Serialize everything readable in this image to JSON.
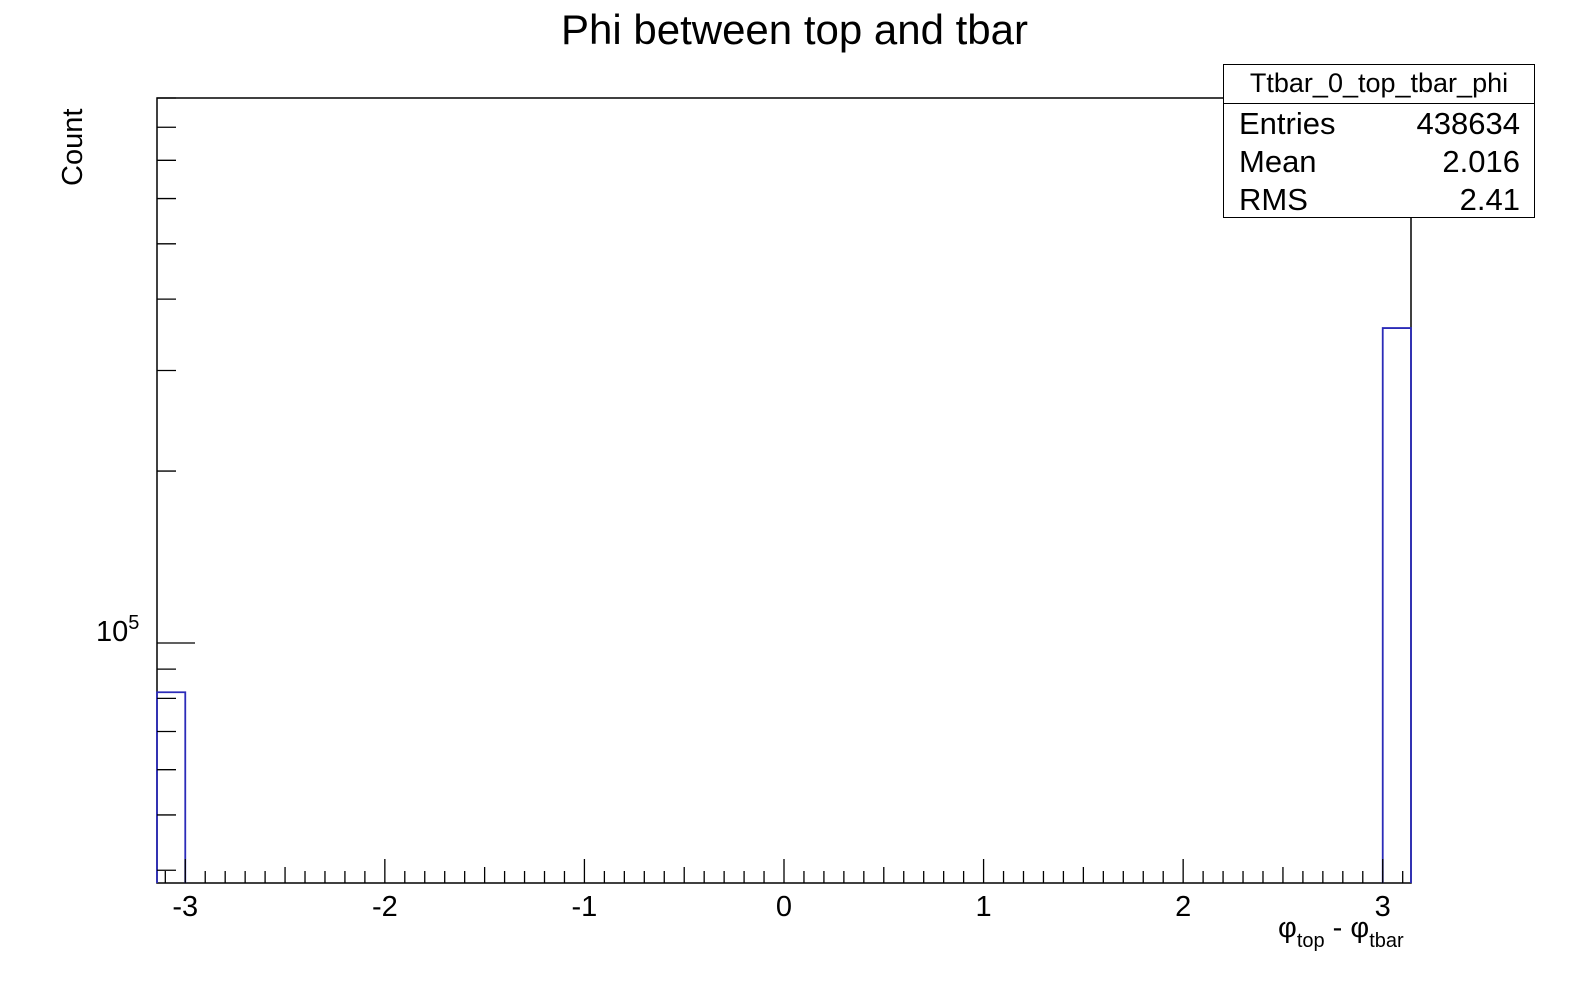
{
  "chart_data": {
    "type": "bar",
    "title": "Phi between top and tbar",
    "ylabel": "Count",
    "xlabel_main": "φ",
    "xlabel_sub1": "top",
    "xlabel_mid": " - φ",
    "xlabel_sub2": "tbar",
    "xlim": [
      -3.1416,
      3.1416
    ],
    "ylim": [
      38000,
      900000
    ],
    "yscale": "log",
    "x_ticks": [
      "-3",
      "-2",
      "-1",
      "0",
      "1",
      "2",
      "3"
    ],
    "y_tick_label_base": "10",
    "y_tick_label_exp": "5",
    "grid": false,
    "bins": [
      {
        "x_low": -3.1416,
        "x_high": -3.0,
        "value": 82000
      },
      {
        "x_low": 3.0,
        "x_high": 3.1416,
        "value": 356000
      }
    ],
    "line_color": "#2b2bb8",
    "stats_box": {
      "name": "Ttbar_0_top_tbar_phi",
      "rows": [
        {
          "label": "Entries",
          "value": "438634"
        },
        {
          "label": "Mean",
          "value": "2.016"
        },
        {
          "label": "RMS",
          "value": "2.41"
        }
      ]
    }
  }
}
